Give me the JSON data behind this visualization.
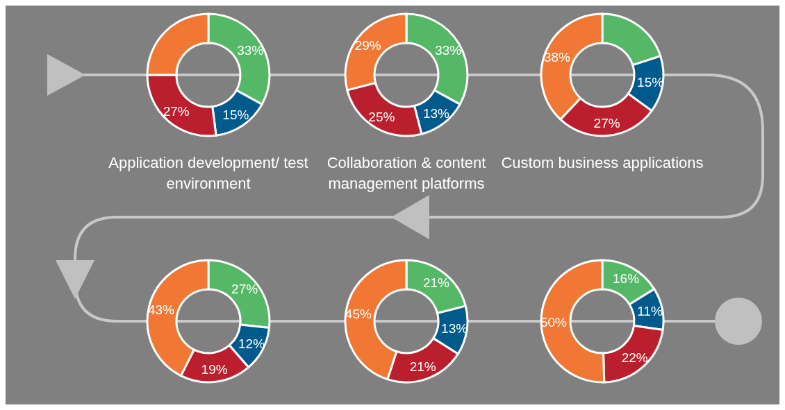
{
  "chart_data": [
    {
      "type": "donut",
      "title": "Application development/ test environment",
      "categories": [
        null,
        null,
        null,
        null
      ],
      "values": [
        33,
        15,
        27,
        25
      ],
      "colors": [
        "#55b866",
        "#005a8c",
        "#bb1f2e",
        "#f07834"
      ],
      "value_labels": [
        "33%",
        "15%",
        "27%",
        null
      ]
    },
    {
      "type": "donut",
      "title": "Collaboration & content management platforms",
      "categories": [
        null,
        null,
        null,
        null
      ],
      "values": [
        33,
        13,
        25,
        29
      ],
      "colors": [
        "#55b866",
        "#005a8c",
        "#bb1f2e",
        "#f07834"
      ],
      "value_labels": [
        "33%",
        "13%",
        "25%",
        "29%"
      ]
    },
    {
      "type": "donut",
      "title": "Custom business applications",
      "categories": [
        null,
        null,
        null,
        null
      ],
      "values": [
        20,
        15,
        27,
        38
      ],
      "colors": [
        "#55b866",
        "#005a8c",
        "#bb1f2e",
        "#f07834"
      ],
      "value_labels": [
        null,
        "15%",
        "27%",
        "38%"
      ]
    },
    {
      "type": "donut",
      "categories": [
        null,
        null,
        null,
        null
      ],
      "values": [
        27,
        12,
        19,
        43
      ],
      "colors": [
        "#55b866",
        "#005a8c",
        "#bb1f2e",
        "#f07834"
      ],
      "value_labels": [
        "27%",
        "12%",
        "19%",
        "43%"
      ]
    },
    {
      "type": "donut",
      "categories": [
        null,
        null,
        null,
        null
      ],
      "values": [
        21,
        13,
        21,
        45
      ],
      "colors": [
        "#55b866",
        "#005a8c",
        "#bb1f2e",
        "#f07834"
      ],
      "value_labels": [
        "21%",
        "13%",
        "21%",
        "45%"
      ]
    },
    {
      "type": "donut",
      "categories": [
        null,
        null,
        null,
        null
      ],
      "values": [
        16,
        11,
        22,
        50
      ],
      "colors": [
        "#55b866",
        "#005a8c",
        "#bb1f2e",
        "#f07834"
      ],
      "value_labels": [
        "16%",
        "11%",
        "22%",
        "50%"
      ]
    }
  ]
}
